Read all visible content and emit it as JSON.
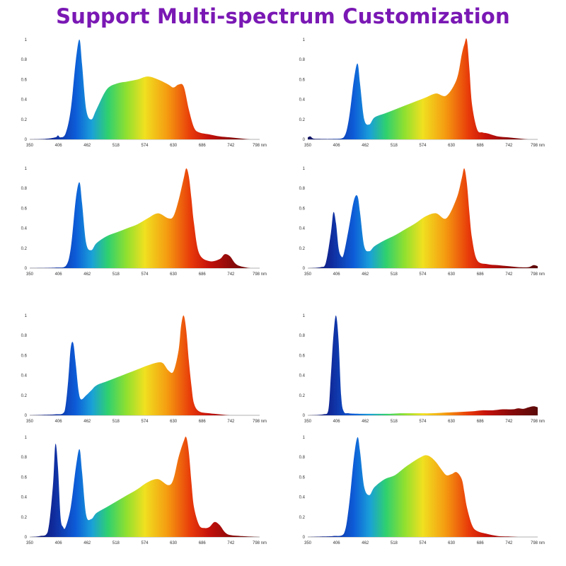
{
  "page_title": "Support Multi-spectrum Customization",
  "colors": {
    "title": "#7a18b4",
    "axis": "#666666"
  },
  "chart_data": [
    {
      "type": "area",
      "x_unit": "nm",
      "xlim": [
        350,
        798
      ],
      "ylim": [
        0,
        1
      ],
      "x_ticks": [
        "350",
        "406",
        "462",
        "518",
        "574",
        "630",
        "686",
        "742",
        "798 nm"
      ],
      "y_ticks": [
        "0",
        "0.2",
        "0.4",
        "0.6",
        "0.8",
        "1"
      ],
      "series": [
        {
          "x": [
            350,
            380,
            400,
            405,
            410,
            420,
            430,
            440,
            447,
            452,
            460,
            470,
            480,
            500,
            520,
            540,
            560,
            580,
            600,
            620,
            630,
            640,
            650,
            660,
            670,
            680,
            700,
            720,
            740,
            760,
            780,
            798
          ],
          "y": [
            0,
            0.005,
            0.02,
            0.04,
            0.02,
            0.06,
            0.3,
            0.8,
            1,
            0.75,
            0.3,
            0.2,
            0.3,
            0.5,
            0.56,
            0.58,
            0.6,
            0.63,
            0.6,
            0.55,
            0.52,
            0.55,
            0.53,
            0.3,
            0.12,
            0.07,
            0.05,
            0.03,
            0.02,
            0.01,
            0,
            0
          ]
        }
      ]
    },
    {
      "type": "area",
      "x_unit": "nm",
      "xlim": [
        350,
        798
      ],
      "ylim": [
        0,
        1
      ],
      "x_ticks": [
        "350",
        "406",
        "462",
        "518",
        "574",
        "630",
        "686",
        "742",
        "798 nm"
      ],
      "y_ticks": [
        "0",
        "0.2",
        "0.4",
        "0.6",
        "0.8",
        "1"
      ],
      "series": [
        {
          "x": [
            350,
            355,
            360,
            370,
            400,
            420,
            430,
            440,
            447,
            452,
            460,
            470,
            480,
            500,
            520,
            540,
            560,
            580,
            600,
            620,
            640,
            650,
            655,
            660,
            665,
            670,
            680,
            690,
            700,
            720,
            740,
            760,
            780,
            798
          ],
          "y": [
            0.02,
            0.03,
            0.01,
            0.005,
            0.005,
            0.02,
            0.2,
            0.6,
            0.76,
            0.55,
            0.2,
            0.15,
            0.22,
            0.26,
            0.3,
            0.34,
            0.38,
            0.42,
            0.46,
            0.44,
            0.6,
            0.85,
            0.95,
            1,
            0.7,
            0.35,
            0.1,
            0.07,
            0.06,
            0.03,
            0.02,
            0.01,
            0,
            0
          ]
        }
      ]
    },
    {
      "type": "area",
      "x_unit": "nm",
      "xlim": [
        350,
        798
      ],
      "ylim": [
        0,
        1
      ],
      "x_ticks": [
        "350",
        "406",
        "462",
        "518",
        "574",
        "630",
        "686",
        "742",
        "798 nm"
      ],
      "y_ticks": [
        "0",
        "0.2",
        "0.4",
        "0.6",
        "0.8",
        "1"
      ],
      "series": [
        {
          "x": [
            350,
            400,
            420,
            430,
            440,
            447,
            452,
            460,
            470,
            480,
            500,
            520,
            540,
            560,
            580,
            600,
            620,
            630,
            640,
            650,
            655,
            660,
            665,
            670,
            680,
            700,
            720,
            730,
            740,
            750,
            760,
            780,
            798
          ],
          "y": [
            0,
            0.005,
            0.02,
            0.2,
            0.7,
            0.86,
            0.65,
            0.25,
            0.18,
            0.25,
            0.32,
            0.36,
            0.4,
            0.44,
            0.5,
            0.55,
            0.5,
            0.52,
            0.68,
            0.9,
            1,
            0.92,
            0.7,
            0.45,
            0.15,
            0.07,
            0.09,
            0.14,
            0.12,
            0.05,
            0.02,
            0,
            0
          ]
        }
      ]
    },
    {
      "type": "area",
      "x_unit": "nm",
      "xlim": [
        350,
        798
      ],
      "ylim": [
        0,
        1
      ],
      "x_ticks": [
        "350",
        "406",
        "462",
        "518",
        "574",
        "630",
        "686",
        "742",
        "798 nm"
      ],
      "y_ticks": [
        "0",
        "0.2",
        "0.4",
        "0.6",
        "0.8",
        "1"
      ],
      "series": [
        {
          "x": [
            350,
            375,
            385,
            395,
            400,
            405,
            410,
            415,
            420,
            430,
            440,
            447,
            452,
            460,
            470,
            480,
            500,
            520,
            540,
            560,
            580,
            600,
            620,
            640,
            650,
            655,
            660,
            665,
            670,
            680,
            700,
            720,
            740,
            760,
            780,
            790,
            798
          ],
          "y": [
            0,
            0.01,
            0.05,
            0.35,
            0.56,
            0.45,
            0.2,
            0.12,
            0.14,
            0.4,
            0.68,
            0.72,
            0.55,
            0.22,
            0.17,
            0.22,
            0.28,
            0.33,
            0.39,
            0.45,
            0.52,
            0.55,
            0.5,
            0.7,
            0.9,
            1,
            0.85,
            0.55,
            0.3,
            0.08,
            0.04,
            0.03,
            0.02,
            0.01,
            0.01,
            0.03,
            0.02
          ]
        }
      ]
    },
    {
      "type": "area",
      "x_unit": "nm",
      "xlim": [
        350,
        798
      ],
      "ylim": [
        0,
        1
      ],
      "x_ticks": [
        "350",
        "406",
        "462",
        "518",
        "574",
        "630",
        "686",
        "742",
        "798 nm"
      ],
      "y_ticks": [
        "0",
        "0.2",
        "0.4",
        "0.6",
        "0.8",
        "1"
      ],
      "series": [
        {
          "x": [
            350,
            380,
            400,
            415,
            420,
            425,
            430,
            435,
            440,
            445,
            450,
            460,
            470,
            480,
            500,
            520,
            540,
            560,
            580,
            600,
            610,
            620,
            630,
            640,
            645,
            650,
            655,
            660,
            665,
            670,
            680,
            700,
            720,
            740,
            760,
            798
          ],
          "y": [
            0,
            0.005,
            0.01,
            0.02,
            0.1,
            0.35,
            0.68,
            0.72,
            0.5,
            0.25,
            0.16,
            0.2,
            0.25,
            0.3,
            0.34,
            0.38,
            0.42,
            0.46,
            0.5,
            0.53,
            0.52,
            0.45,
            0.44,
            0.65,
            0.9,
            1,
            0.85,
            0.55,
            0.3,
            0.12,
            0.04,
            0.02,
            0.01,
            0,
            0,
            0
          ]
        }
      ]
    },
    {
      "type": "area",
      "x_unit": "nm",
      "xlim": [
        350,
        798
      ],
      "ylim": [
        0,
        1
      ],
      "x_ticks": [
        "350",
        "406",
        "462",
        "518",
        "574",
        "630",
        "686",
        "742",
        "798 nm"
      ],
      "y_ticks": [
        "0",
        "0.2",
        "0.4",
        "0.6",
        "0.8",
        "1"
      ],
      "series": [
        {
          "x": [
            350,
            380,
            390,
            395,
            400,
            405,
            410,
            415,
            420,
            430,
            450,
            470,
            490,
            510,
            530,
            550,
            570,
            590,
            610,
            630,
            650,
            670,
            690,
            710,
            730,
            750,
            760,
            770,
            780,
            790,
            798
          ],
          "y": [
            0,
            0.01,
            0.05,
            0.4,
            0.8,
            1,
            0.75,
            0.2,
            0.04,
            0.02,
            0.015,
            0.015,
            0.015,
            0.015,
            0.02,
            0.02,
            0.02,
            0.02,
            0.025,
            0.03,
            0.035,
            0.04,
            0.05,
            0.05,
            0.06,
            0.06,
            0.07,
            0.065,
            0.08,
            0.09,
            0.08
          ]
        }
      ]
    },
    {
      "type": "area",
      "x_unit": "nm",
      "xlim": [
        350,
        798
      ],
      "ylim": [
        0,
        1
      ],
      "x_ticks": [
        "350",
        "406",
        "462",
        "518",
        "574",
        "630",
        "686",
        "742",
        "798 nm"
      ],
      "y_ticks": [
        "0",
        "0.2",
        "0.4",
        "0.6",
        "0.8",
        "1"
      ],
      "series": [
        {
          "x": [
            350,
            370,
            385,
            395,
            400,
            405,
            410,
            415,
            420,
            430,
            440,
            447,
            452,
            460,
            470,
            480,
            500,
            520,
            540,
            560,
            580,
            600,
            620,
            630,
            640,
            650,
            655,
            660,
            665,
            670,
            680,
            690,
            700,
            710,
            720,
            730,
            740,
            760,
            798
          ],
          "y": [
            0,
            0.01,
            0.05,
            0.5,
            0.93,
            0.7,
            0.2,
            0.1,
            0.1,
            0.3,
            0.7,
            0.88,
            0.65,
            0.22,
            0.18,
            0.24,
            0.3,
            0.36,
            0.42,
            0.48,
            0.55,
            0.58,
            0.52,
            0.58,
            0.8,
            0.96,
            1,
            0.85,
            0.55,
            0.3,
            0.12,
            0.09,
            0.1,
            0.15,
            0.12,
            0.05,
            0.02,
            0.01,
            0
          ]
        }
      ]
    },
    {
      "type": "area",
      "x_unit": "nm",
      "xlim": [
        350,
        798
      ],
      "ylim": [
        0,
        1
      ],
      "x_ticks": [
        "350",
        "406",
        "462",
        "518",
        "574",
        "630",
        "686",
        "742",
        "798 nm"
      ],
      "y_ticks": [
        "0",
        "0.2",
        "0.4",
        "0.6",
        "0.8",
        "1"
      ],
      "series": [
        {
          "x": [
            350,
            380,
            400,
            420,
            430,
            440,
            447,
            452,
            460,
            470,
            480,
            500,
            520,
            540,
            560,
            570,
            580,
            590,
            600,
            610,
            620,
            630,
            640,
            650,
            655,
            660,
            670,
            680,
            700,
            720,
            740,
            760,
            780,
            798
          ],
          "y": [
            0,
            0.005,
            0.01,
            0.03,
            0.3,
            0.8,
            1,
            0.85,
            0.5,
            0.42,
            0.5,
            0.58,
            0.62,
            0.7,
            0.77,
            0.8,
            0.82,
            0.8,
            0.75,
            0.68,
            0.62,
            0.63,
            0.65,
            0.58,
            0.45,
            0.3,
            0.12,
            0.06,
            0.03,
            0.01,
            0.005,
            0,
            0,
            0
          ]
        }
      ]
    }
  ]
}
